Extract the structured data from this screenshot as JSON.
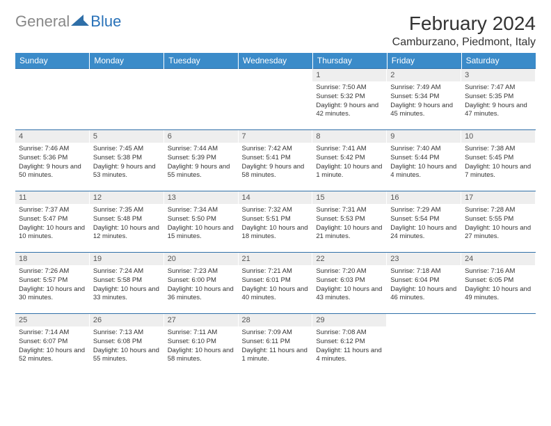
{
  "brand": {
    "general": "General",
    "blue": "Blue"
  },
  "title": "February 2024",
  "location": "Camburzano, Piedmont, Italy",
  "colors": {
    "header_bg": "#3b8bc9",
    "header_text": "#ffffff",
    "row_border": "#2f6fa8",
    "daynum_bg": "#eeeeee",
    "logo_gray": "#888888",
    "logo_blue": "#2871b8"
  },
  "weekdays": [
    "Sunday",
    "Monday",
    "Tuesday",
    "Wednesday",
    "Thursday",
    "Friday",
    "Saturday"
  ],
  "weeks": [
    [
      null,
      null,
      null,
      null,
      {
        "n": "1",
        "sunrise": "7:50 AM",
        "sunset": "5:32 PM",
        "daylight": "9 hours and 42 minutes."
      },
      {
        "n": "2",
        "sunrise": "7:49 AM",
        "sunset": "5:34 PM",
        "daylight": "9 hours and 45 minutes."
      },
      {
        "n": "3",
        "sunrise": "7:47 AM",
        "sunset": "5:35 PM",
        "daylight": "9 hours and 47 minutes."
      }
    ],
    [
      {
        "n": "4",
        "sunrise": "7:46 AM",
        "sunset": "5:36 PM",
        "daylight": "9 hours and 50 minutes."
      },
      {
        "n": "5",
        "sunrise": "7:45 AM",
        "sunset": "5:38 PM",
        "daylight": "9 hours and 53 minutes."
      },
      {
        "n": "6",
        "sunrise": "7:44 AM",
        "sunset": "5:39 PM",
        "daylight": "9 hours and 55 minutes."
      },
      {
        "n": "7",
        "sunrise": "7:42 AM",
        "sunset": "5:41 PM",
        "daylight": "9 hours and 58 minutes."
      },
      {
        "n": "8",
        "sunrise": "7:41 AM",
        "sunset": "5:42 PM",
        "daylight": "10 hours and 1 minute."
      },
      {
        "n": "9",
        "sunrise": "7:40 AM",
        "sunset": "5:44 PM",
        "daylight": "10 hours and 4 minutes."
      },
      {
        "n": "10",
        "sunrise": "7:38 AM",
        "sunset": "5:45 PM",
        "daylight": "10 hours and 7 minutes."
      }
    ],
    [
      {
        "n": "11",
        "sunrise": "7:37 AM",
        "sunset": "5:47 PM",
        "daylight": "10 hours and 10 minutes."
      },
      {
        "n": "12",
        "sunrise": "7:35 AM",
        "sunset": "5:48 PM",
        "daylight": "10 hours and 12 minutes."
      },
      {
        "n": "13",
        "sunrise": "7:34 AM",
        "sunset": "5:50 PM",
        "daylight": "10 hours and 15 minutes."
      },
      {
        "n": "14",
        "sunrise": "7:32 AM",
        "sunset": "5:51 PM",
        "daylight": "10 hours and 18 minutes."
      },
      {
        "n": "15",
        "sunrise": "7:31 AM",
        "sunset": "5:53 PM",
        "daylight": "10 hours and 21 minutes."
      },
      {
        "n": "16",
        "sunrise": "7:29 AM",
        "sunset": "5:54 PM",
        "daylight": "10 hours and 24 minutes."
      },
      {
        "n": "17",
        "sunrise": "7:28 AM",
        "sunset": "5:55 PM",
        "daylight": "10 hours and 27 minutes."
      }
    ],
    [
      {
        "n": "18",
        "sunrise": "7:26 AM",
        "sunset": "5:57 PM",
        "daylight": "10 hours and 30 minutes."
      },
      {
        "n": "19",
        "sunrise": "7:24 AM",
        "sunset": "5:58 PM",
        "daylight": "10 hours and 33 minutes."
      },
      {
        "n": "20",
        "sunrise": "7:23 AM",
        "sunset": "6:00 PM",
        "daylight": "10 hours and 36 minutes."
      },
      {
        "n": "21",
        "sunrise": "7:21 AM",
        "sunset": "6:01 PM",
        "daylight": "10 hours and 40 minutes."
      },
      {
        "n": "22",
        "sunrise": "7:20 AM",
        "sunset": "6:03 PM",
        "daylight": "10 hours and 43 minutes."
      },
      {
        "n": "23",
        "sunrise": "7:18 AM",
        "sunset": "6:04 PM",
        "daylight": "10 hours and 46 minutes."
      },
      {
        "n": "24",
        "sunrise": "7:16 AM",
        "sunset": "6:05 PM",
        "daylight": "10 hours and 49 minutes."
      }
    ],
    [
      {
        "n": "25",
        "sunrise": "7:14 AM",
        "sunset": "6:07 PM",
        "daylight": "10 hours and 52 minutes."
      },
      {
        "n": "26",
        "sunrise": "7:13 AM",
        "sunset": "6:08 PM",
        "daylight": "10 hours and 55 minutes."
      },
      {
        "n": "27",
        "sunrise": "7:11 AM",
        "sunset": "6:10 PM",
        "daylight": "10 hours and 58 minutes."
      },
      {
        "n": "28",
        "sunrise": "7:09 AM",
        "sunset": "6:11 PM",
        "daylight": "11 hours and 1 minute."
      },
      {
        "n": "29",
        "sunrise": "7:08 AM",
        "sunset": "6:12 PM",
        "daylight": "11 hours and 4 minutes."
      },
      null,
      null
    ]
  ],
  "labels": {
    "sunrise": "Sunrise:",
    "sunset": "Sunset:",
    "daylight": "Daylight:"
  }
}
